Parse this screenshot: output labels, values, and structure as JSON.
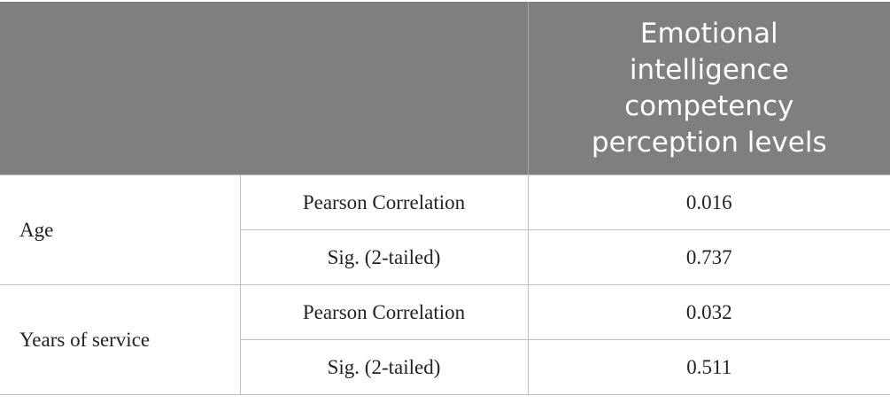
{
  "table": {
    "header": {
      "title": "Emotional intelligence competency perception levels"
    },
    "groups": [
      {
        "label": "Age",
        "rows": [
          [
            "Pearson Correlation",
            "0.016"
          ],
          [
            "Sig. (2-tailed)",
            "0.737"
          ]
        ]
      },
      {
        "label": "Years of service",
        "rows": [
          [
            "Pearson Correlation",
            "0.032"
          ],
          [
            "Sig. (2-tailed)",
            "0.511"
          ]
        ]
      }
    ]
  }
}
